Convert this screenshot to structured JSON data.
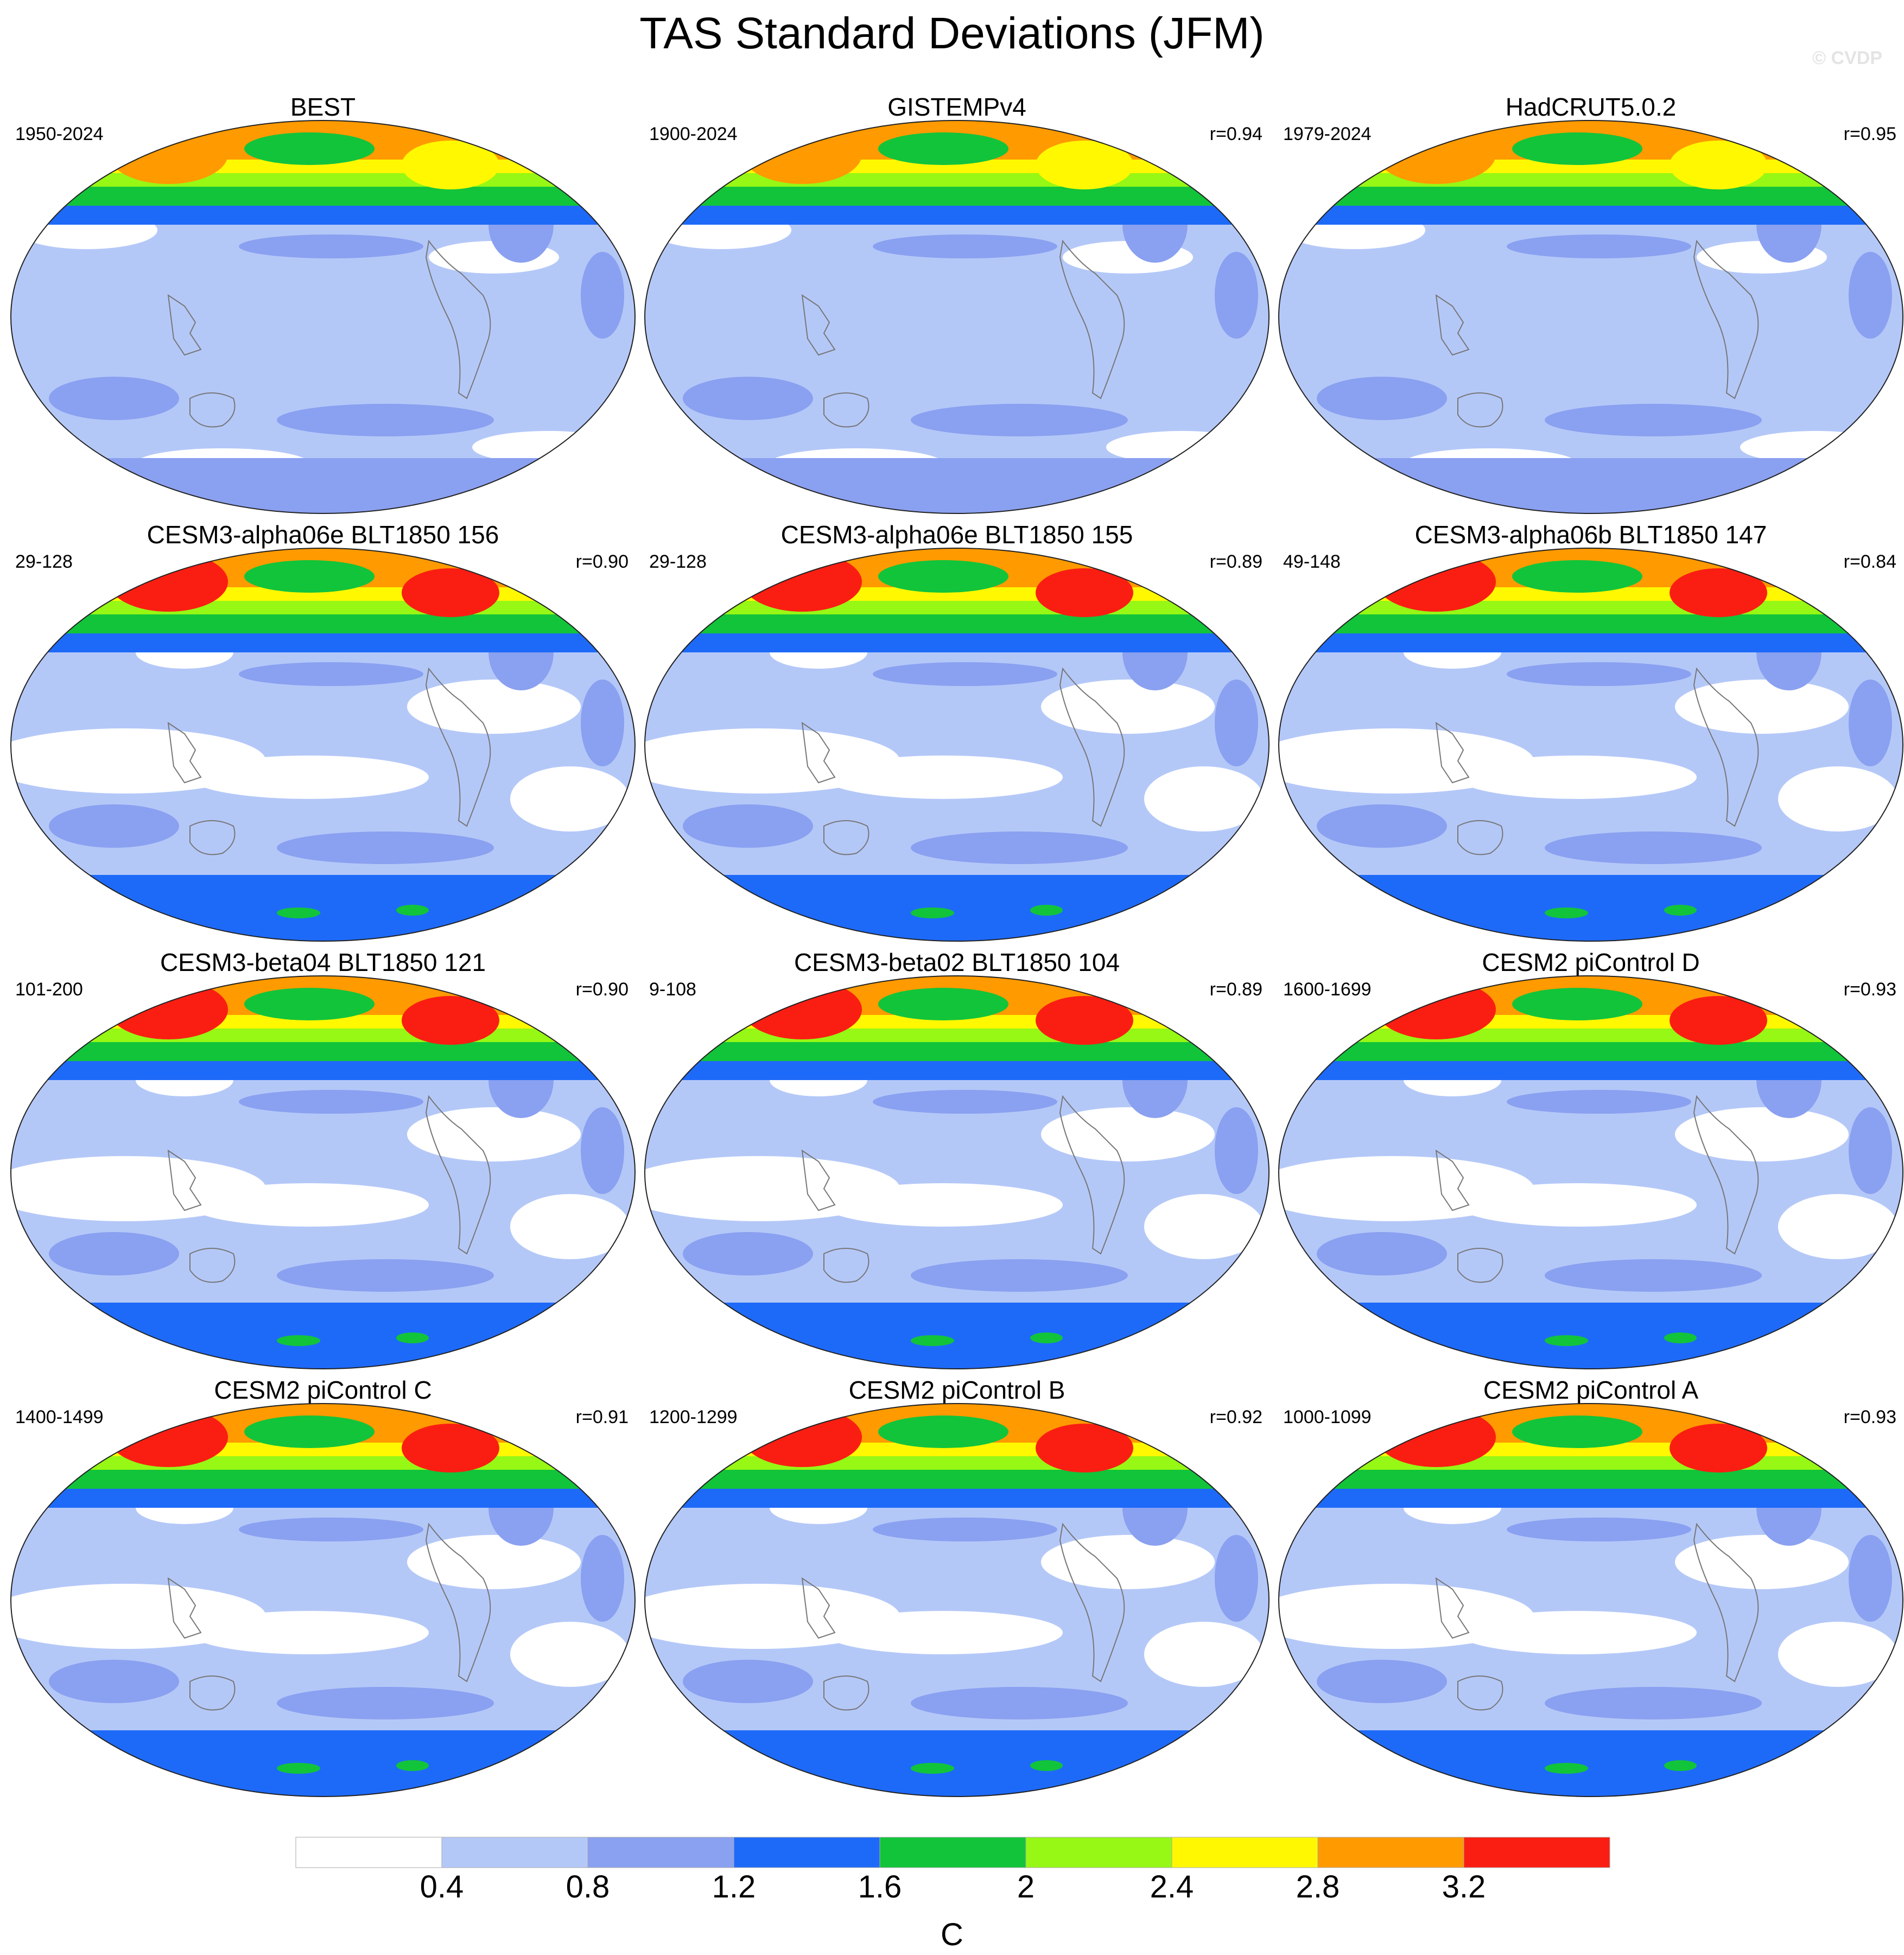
{
  "title": "TAS Standard Deviations (JFM)",
  "watermark": "© CVDP",
  "legend": {
    "units": "C",
    "levels": [
      "0.4",
      "0.8",
      "1.2",
      "1.6",
      "2",
      "2.4",
      "2.8",
      "3.2"
    ],
    "colors": [
      "#ffffff",
      "#b4c8f8",
      "#8aa0f0",
      "#1e6af8",
      "#12c43a",
      "#96f814",
      "#fff800",
      "#ff9a00",
      "#fa1e12"
    ]
  },
  "panels": [
    {
      "name": "BEST",
      "years": "1950-2024",
      "r": ""
    },
    {
      "name": "GISTEMPv4",
      "years": "1900-2024",
      "r": "r=0.94"
    },
    {
      "name": "HadCRUT5.0.2",
      "years": "1979-2024",
      "r": "r=0.95"
    },
    {
      "name": "CESM3-alpha06e BLT1850 156",
      "years": "29-128",
      "r": "r=0.90"
    },
    {
      "name": "CESM3-alpha06e BLT1850 155",
      "years": "29-128",
      "r": "r=0.89"
    },
    {
      "name": "CESM3-alpha06b BLT1850 147",
      "years": "49-148",
      "r": "r=0.84"
    },
    {
      "name": "CESM3-beta04 BLT1850 121",
      "years": "101-200",
      "r": "r=0.90"
    },
    {
      "name": "CESM3-beta02 BLT1850 104",
      "years": "9-108",
      "r": "r=0.89"
    },
    {
      "name": "CESM2 piControl D",
      "years": "1600-1699",
      "r": "r=0.93"
    },
    {
      "name": "CESM2 piControl C",
      "years": "1400-1499",
      "r": "r=0.91"
    },
    {
      "name": "CESM2 piControl B",
      "years": "1200-1299",
      "r": "r=0.92"
    },
    {
      "name": "CESM2 piControl A",
      "years": "1000-1099",
      "r": "r=0.93"
    }
  ]
}
